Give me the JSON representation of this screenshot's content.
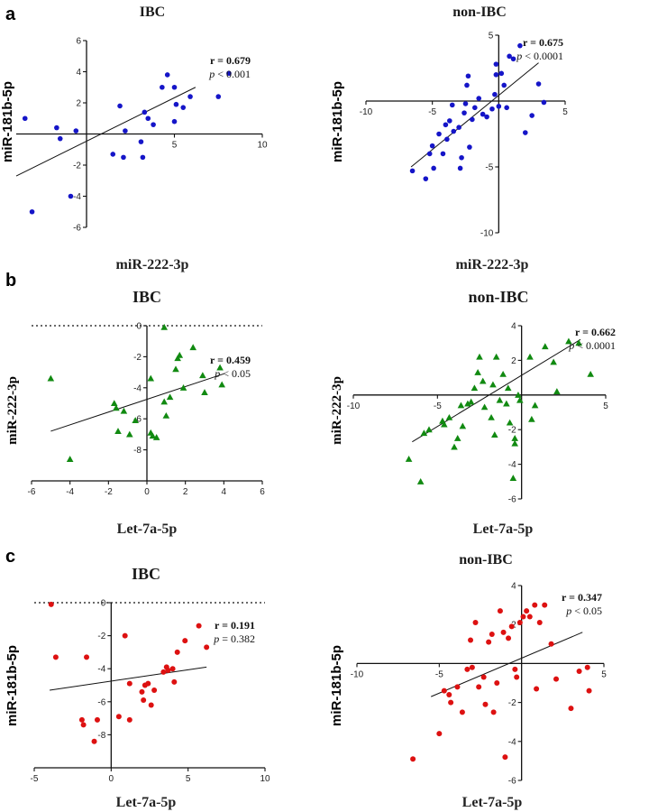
{
  "panel_labels": [
    "a",
    "b",
    "c"
  ],
  "chart_data": [
    {
      "id": "a_ibc",
      "type": "scatter",
      "title": "IBC",
      "xlabel": "miR-222-3p",
      "ylabel": "miR-181b-5p",
      "xlim": [
        -4,
        10
      ],
      "ylim": [
        -6,
        6
      ],
      "xticks": [
        5,
        10
      ],
      "yticks": [
        -6,
        -4,
        -2,
        2,
        4,
        6
      ],
      "stats": {
        "r": "r = 0.679",
        "p": "p < 0.001"
      },
      "color": "#1515c8",
      "marker": "circle",
      "fit": [
        [
          -4,
          -2.7
        ],
        [
          6.2,
          3.0
        ]
      ],
      "points": [
        [
          -3.5,
          1.0
        ],
        [
          -3.1,
          -5.0
        ],
        [
          -1.7,
          0.4
        ],
        [
          -1.5,
          -0.3
        ],
        [
          -0.9,
          -4.0
        ],
        [
          -0.6,
          0.2
        ],
        [
          1.5,
          -1.3
        ],
        [
          1.9,
          1.8
        ],
        [
          2.1,
          -1.5
        ],
        [
          2.2,
          0.2
        ],
        [
          3.1,
          -0.5
        ],
        [
          3.2,
          -1.5
        ],
        [
          3.3,
          1.4
        ],
        [
          3.5,
          1.0
        ],
        [
          3.8,
          0.6
        ],
        [
          4.3,
          3.0
        ],
        [
          4.6,
          3.8
        ],
        [
          5.0,
          3.0
        ],
        [
          5.0,
          0.8
        ],
        [
          5.1,
          1.9
        ],
        [
          5.5,
          1.7
        ],
        [
          5.9,
          2.4
        ],
        [
          7.5,
          2.4
        ],
        [
          8.1,
          3.9
        ]
      ]
    },
    {
      "id": "a_non",
      "type": "scatter",
      "title": "non-IBC",
      "xlabel": "miR-222-3p",
      "ylabel": "miR-181b-5p",
      "xlim": [
        -10,
        5
      ],
      "ylim": [
        -10,
        5
      ],
      "xticks": [
        -10,
        -5,
        5
      ],
      "yticks": [
        -10,
        -5,
        5
      ],
      "stats": {
        "r": "r = 0.675",
        "p": "p < 0.0001"
      },
      "color": "#1515c8",
      "marker": "circle",
      "fit": [
        [
          -6.6,
          -5.0
        ],
        [
          3.0,
          2.9
        ]
      ],
      "points": [
        [
          -6.5,
          -5.3
        ],
        [
          -5.5,
          -5.9
        ],
        [
          -5.2,
          -4.0
        ],
        [
          -5.0,
          -3.4
        ],
        [
          -4.9,
          -5.1
        ],
        [
          -4.5,
          -2.5
        ],
        [
          -4.2,
          -4.0
        ],
        [
          -4.0,
          -1.8
        ],
        [
          -3.9,
          -2.9
        ],
        [
          -3.7,
          -1.5
        ],
        [
          -3.5,
          -0.3
        ],
        [
          -3.4,
          -2.3
        ],
        [
          -3.0,
          -2.0
        ],
        [
          -2.9,
          -5.1
        ],
        [
          -2.8,
          -4.3
        ],
        [
          -2.6,
          -0.9
        ],
        [
          -2.5,
          -0.2
        ],
        [
          -2.4,
          1.2
        ],
        [
          -2.3,
          1.9
        ],
        [
          -2.2,
          -3.5
        ],
        [
          -2.0,
          -1.4
        ],
        [
          -1.8,
          -0.5
        ],
        [
          -1.5,
          0.2
        ],
        [
          -1.2,
          -1.0
        ],
        [
          -0.9,
          -1.2
        ],
        [
          -0.5,
          -0.6
        ],
        [
          -0.3,
          0.5
        ],
        [
          -0.2,
          2.0
        ],
        [
          -0.2,
          2.8
        ],
        [
          0.0,
          -0.4
        ],
        [
          0.2,
          2.1
        ],
        [
          0.4,
          1.2
        ],
        [
          0.6,
          -0.5
        ],
        [
          0.8,
          3.4
        ],
        [
          1.1,
          3.2
        ],
        [
          1.6,
          4.2
        ],
        [
          2.0,
          -2.4
        ],
        [
          2.5,
          -1.1
        ],
        [
          3.0,
          1.3
        ],
        [
          3.4,
          -0.1
        ]
      ]
    },
    {
      "id": "b_ibc",
      "type": "scatter",
      "title": "IBC",
      "xlabel": "Let-7a-5p",
      "ylabel": "miR-222-3p",
      "xlim": [
        -6,
        6
      ],
      "ylim": [
        -10,
        0
      ],
      "xticks": [
        -6,
        -4,
        -2,
        0,
        2,
        4,
        6
      ],
      "yticks": [
        0,
        -2,
        -4,
        -6,
        -8
      ],
      "stats": {
        "r": "r = 0.459",
        "p": "p < 0.05"
      },
      "color": "#118a11",
      "marker": "triangle",
      "fit": [
        [
          -5.0,
          -6.8
        ],
        [
          4.0,
          -3.1
        ]
      ],
      "points": [
        [
          -5.0,
          -3.4
        ],
        [
          -4.0,
          -8.6
        ],
        [
          -1.7,
          -5.0
        ],
        [
          -1.6,
          -5.3
        ],
        [
          -1.5,
          -6.8
        ],
        [
          -1.2,
          -5.5
        ],
        [
          -0.9,
          -7.0
        ],
        [
          -0.6,
          -6.1
        ],
        [
          0.2,
          -3.4
        ],
        [
          0.2,
          -6.9
        ],
        [
          0.3,
          -7.1
        ],
        [
          0.5,
          -7.2
        ],
        [
          0.9,
          -0.1
        ],
        [
          0.9,
          -4.9
        ],
        [
          1.0,
          -5.8
        ],
        [
          1.2,
          -4.6
        ],
        [
          1.5,
          -2.8
        ],
        [
          1.6,
          -2.1
        ],
        [
          1.7,
          -1.9
        ],
        [
          1.9,
          -4.0
        ],
        [
          2.4,
          -1.4
        ],
        [
          2.9,
          -3.2
        ],
        [
          3.0,
          -4.3
        ],
        [
          3.8,
          -2.7
        ],
        [
          3.9,
          -3.8
        ]
      ]
    },
    {
      "id": "b_non",
      "type": "scatter",
      "title": "non-IBC",
      "xlabel": "Let-7a-5p",
      "ylabel": "miR-222-3p",
      "xlim": [
        -10,
        5
      ],
      "ylim": [
        -6,
        4
      ],
      "xticks": [
        -10,
        -5,
        5
      ],
      "yticks": [
        4,
        2,
        -2,
        -4,
        -6
      ],
      "stats": {
        "r": "r = 0.662",
        "p": "p < 0.0001"
      },
      "color": "#118a11",
      "marker": "triangle",
      "fit": [
        [
          -6.5,
          -2.7
        ],
        [
          3.5,
          3.2
        ]
      ],
      "points": [
        [
          -6.7,
          -3.7
        ],
        [
          -6.0,
          -5.0
        ],
        [
          -5.8,
          -2.2
        ],
        [
          -5.5,
          -2.0
        ],
        [
          -4.7,
          -1.5
        ],
        [
          -4.6,
          -1.7
        ],
        [
          -4.3,
          -1.3
        ],
        [
          -4.0,
          -3.0
        ],
        [
          -3.8,
          -2.5
        ],
        [
          -3.6,
          -0.6
        ],
        [
          -3.5,
          -1.8
        ],
        [
          -3.2,
          -0.5
        ],
        [
          -3.0,
          -0.4
        ],
        [
          -2.8,
          0.4
        ],
        [
          -2.6,
          1.3
        ],
        [
          -2.5,
          2.2
        ],
        [
          -2.3,
          0.8
        ],
        [
          -2.2,
          -0.7
        ],
        [
          -1.8,
          -1.3
        ],
        [
          -1.7,
          0.6
        ],
        [
          -1.6,
          -2.3
        ],
        [
          -1.5,
          2.2
        ],
        [
          -1.3,
          -0.3
        ],
        [
          -1.1,
          1.2
        ],
        [
          -0.9,
          -0.5
        ],
        [
          -0.8,
          0.4
        ],
        [
          -0.7,
          -1.6
        ],
        [
          -0.5,
          -4.8
        ],
        [
          -0.4,
          -2.5
        ],
        [
          -0.4,
          -2.8
        ],
        [
          -0.2,
          0.0
        ],
        [
          -0.1,
          -0.3
        ],
        [
          0.5,
          2.2
        ],
        [
          0.6,
          -1.4
        ],
        [
          0.8,
          -0.6
        ],
        [
          1.4,
          2.8
        ],
        [
          1.9,
          1.9
        ],
        [
          2.1,
          0.2
        ],
        [
          2.8,
          3.1
        ],
        [
          3.4,
          3.0
        ],
        [
          4.1,
          1.2
        ]
      ]
    },
    {
      "id": "c_ibc",
      "type": "scatter",
      "title": "IBC",
      "xlabel": "Let-7a-5p",
      "ylabel": "miR-181b-5p",
      "xlim": [
        -5,
        10
      ],
      "ylim": [
        -10,
        0
      ],
      "xticks": [
        -5,
        0,
        5,
        10
      ],
      "yticks": [
        0,
        -2,
        -4,
        -6,
        -8
      ],
      "stats": {
        "r": "r = 0.191",
        "p": "p = 0.382"
      },
      "color": "#dd1111",
      "marker": "circle",
      "fit": [
        [
          -4.0,
          -5.3
        ],
        [
          6.2,
          -3.9
        ]
      ],
      "points": [
        [
          -3.9,
          -0.1
        ],
        [
          -3.6,
          -3.3
        ],
        [
          -1.9,
          -7.1
        ],
        [
          -1.8,
          -7.4
        ],
        [
          -1.6,
          -3.3
        ],
        [
          -1.1,
          -8.4
        ],
        [
          -0.9,
          -7.1
        ],
        [
          0.5,
          -6.9
        ],
        [
          0.9,
          -2.0
        ],
        [
          1.2,
          -7.1
        ],
        [
          1.2,
          -4.9
        ],
        [
          2.0,
          -5.4
        ],
        [
          2.1,
          -5.9
        ],
        [
          2.2,
          -5.0
        ],
        [
          2.4,
          -4.9
        ],
        [
          2.6,
          -6.2
        ],
        [
          2.8,
          -5.3
        ],
        [
          3.4,
          -4.2
        ],
        [
          3.6,
          -3.9
        ],
        [
          3.7,
          -4.1
        ],
        [
          4.0,
          -4.0
        ],
        [
          4.1,
          -4.8
        ],
        [
          4.3,
          -3.0
        ],
        [
          4.8,
          -2.3
        ],
        [
          5.7,
          -1.4
        ],
        [
          6.2,
          -2.7
        ]
      ]
    },
    {
      "id": "c_non",
      "type": "scatter",
      "title": "non-IBC",
      "xlabel": "Let-7a-5p",
      "ylabel": "miR-181b-5p",
      "xlim": [
        -10,
        5
      ],
      "ylim": [
        -6,
        4
      ],
      "xticks": [
        -10,
        -5,
        5
      ],
      "yticks": [
        4,
        2,
        -2,
        -4,
        -6
      ],
      "stats": {
        "r": "r = 0.347",
        "p": "p < 0.05"
      },
      "color": "#dd1111",
      "marker": "circle",
      "fit": [
        [
          -5.5,
          -1.7
        ],
        [
          3.7,
          1.6
        ]
      ],
      "points": [
        [
          -6.6,
          -4.9
        ],
        [
          -5.0,
          -3.6
        ],
        [
          -4.7,
          -1.4
        ],
        [
          -4.4,
          -1.6
        ],
        [
          -4.3,
          -2.0
        ],
        [
          -3.9,
          -1.2
        ],
        [
          -3.6,
          -2.5
        ],
        [
          -3.3,
          -0.3
        ],
        [
          -3.1,
          1.2
        ],
        [
          -3.0,
          -0.2
        ],
        [
          -2.8,
          2.1
        ],
        [
          -2.6,
          -1.2
        ],
        [
          -2.3,
          -0.7
        ],
        [
          -2.2,
          -2.1
        ],
        [
          -2.0,
          1.1
        ],
        [
          -1.8,
          1.5
        ],
        [
          -1.7,
          -2.5
        ],
        [
          -1.5,
          -1.0
        ],
        [
          -1.3,
          2.7
        ],
        [
          -1.1,
          1.6
        ],
        [
          -1.0,
          -4.8
        ],
        [
          -0.8,
          1.3
        ],
        [
          -0.6,
          1.9
        ],
        [
          -0.4,
          -0.3
        ],
        [
          -0.3,
          -0.7
        ],
        [
          -0.1,
          2.1
        ],
        [
          0.1,
          2.4
        ],
        [
          0.3,
          2.7
        ],
        [
          0.5,
          2.4
        ],
        [
          0.8,
          3.0
        ],
        [
          0.9,
          -1.3
        ],
        [
          1.1,
          2.1
        ],
        [
          1.4,
          3.0
        ],
        [
          1.8,
          1.0
        ],
        [
          2.1,
          -0.8
        ],
        [
          3.0,
          -2.3
        ],
        [
          3.5,
          -0.4
        ],
        [
          4.0,
          -0.2
        ],
        [
          4.1,
          -1.4
        ]
      ]
    }
  ]
}
